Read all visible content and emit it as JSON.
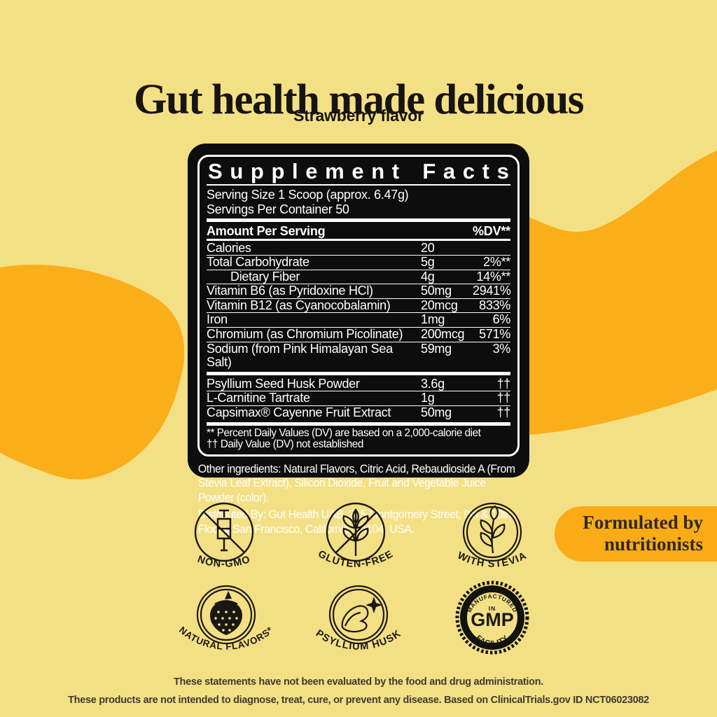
{
  "header": {
    "title": "Gut health made delicious",
    "subtitle": "Strawberry flavor"
  },
  "colors": {
    "background": "#F4E084",
    "wave_orange": "#FAAE19",
    "pill_orange": "#FAAB15",
    "panel_black": "#0D0D0D",
    "ink": "#171412"
  },
  "supplement_facts": {
    "heading": "Supplement Facts",
    "serving_size": "Serving Size 1 Scoop (approx. 6.47g)",
    "servings_per_container": "Servings Per Container 50",
    "amount_header": "Amount Per Serving",
    "dv_header": "%DV**",
    "rows": [
      {
        "name": "Calories",
        "amount": "20",
        "dv": "",
        "indent": false,
        "thick_after": false
      },
      {
        "name": "Total Carbohydrate",
        "amount": "5g",
        "dv": "2%**",
        "indent": false,
        "thick_after": false
      },
      {
        "name": "Dietary Fiber",
        "amount": "4g",
        "dv": "14%**",
        "indent": true,
        "thick_after": false
      },
      {
        "name": "Vitamin B6 (as Pyridoxine HCl)",
        "amount": "50mg",
        "dv": "2941%",
        "indent": false,
        "thick_after": false
      },
      {
        "name": "Vitamin B12 (as Cyanocobalamin)",
        "amount": "20mcg",
        "dv": "833%",
        "indent": false,
        "thick_after": false
      },
      {
        "name": "Iron",
        "amount": "1mg",
        "dv": "6%",
        "indent": false,
        "thick_after": false
      },
      {
        "name": "Chromium (as Chromium Picolinate)",
        "amount": "200mcg",
        "dv": "571%",
        "indent": false,
        "thick_after": false
      },
      {
        "name": "Sodium (from Pink Himalayan Sea Salt)",
        "amount": "59mg",
        "dv": "3%",
        "indent": false,
        "thick_after": true
      },
      {
        "name": "Psyllium Seed Husk Powder",
        "amount": "3.6g",
        "dv": "††",
        "indent": false,
        "thick_after": false
      },
      {
        "name": "L-Carnitine Tartrate",
        "amount": "1g",
        "dv": "††",
        "indent": false,
        "thick_after": false
      },
      {
        "name": "Capsimax® Cayenne Fruit Extract",
        "amount": "50mg",
        "dv": "††",
        "indent": false,
        "thick_after": true
      }
    ],
    "footnotes": [
      "** Percent Daily Values (DV) are based on a 2,000-calorie diet",
      "†† Daily Value (DV) not established"
    ],
    "other_ingredients": "Other ingredients: Natural Flavors, Citric Acid, Rebaudioside A (From Stevia Leaf Extract), Silicon Dioxide, Fruit and Vegetable Juice Powder (color).",
    "distributed_by": "Distributed By: Gut Health UAB, 315 Montgomery Street, 9th & 10th Floors, San Francisco, California, 94104, USA."
  },
  "badges": {
    "non_gmo": "NON-GMO",
    "gluten_free": "GLUTEN-FREE",
    "with_stevia": "WITH STEVIA",
    "natural_flavors": "NATURAL FLAVORS*",
    "psyllium_husk": "PSYLLIUM HUSK",
    "gmp": {
      "top": "MANUFACTURED",
      "mid": "IN",
      "name": "GMP",
      "bottom": "FACILITY"
    }
  },
  "pill": {
    "line1": "Formulated by",
    "line2": "nutritionists"
  },
  "footer": {
    "line1": "These statements have not been evaluated by the food and drug administration.",
    "line2": "These products are not intended to diagnose, treat, cure, or prevent any disease. Based on ClinicalTrials.gov ID NCT06023082"
  }
}
